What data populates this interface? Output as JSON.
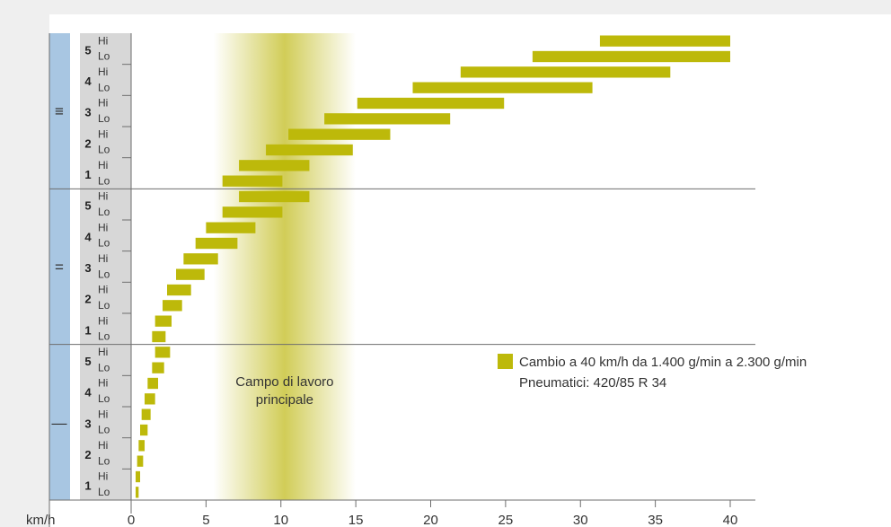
{
  "chart_data": {
    "type": "bar",
    "chart_subtype": "horizontal-range",
    "xlabel": "km/h",
    "xlim": [
      0,
      40
    ],
    "xticks": [
      0,
      5,
      10,
      15,
      20,
      25,
      30,
      35,
      40
    ],
    "colors": {
      "bar": "#bdb90a",
      "groupbar": "#a8c6e2",
      "label_column": "#d7d7d7",
      "background": "#efefef",
      "highlight": "#c9c43a",
      "axis": "#6e6e6e"
    },
    "highlight_band": {
      "label_line1": "Campo di lavoro",
      "label_line2": "principale",
      "range": [
        5.5,
        15
      ]
    },
    "legend": {
      "line1": "Cambio a 40 km/h da 1.400 g/min a 2.300 g/min",
      "line2": "Pneumatici: 420/85 R 34",
      "placement": "right"
    },
    "groups": [
      {
        "label": "≡",
        "gears": [
          {
            "gear": "5",
            "hi": [
              31.3,
              40.0
            ],
            "lo": [
              26.8,
              40.0
            ]
          },
          {
            "gear": "4",
            "hi": [
              22.0,
              36.0
            ],
            "lo": [
              18.8,
              30.8
            ]
          },
          {
            "gear": "3",
            "hi": [
              15.1,
              24.9
            ],
            "lo": [
              12.9,
              21.3
            ]
          },
          {
            "gear": "2",
            "hi": [
              10.5,
              17.3
            ],
            "lo": [
              9.0,
              14.8
            ]
          },
          {
            "gear": "1",
            "hi": [
              7.2,
              11.9
            ],
            "lo": [
              6.1,
              10.1
            ]
          }
        ]
      },
      {
        "label": "=",
        "gears": [
          {
            "gear": "5",
            "hi": [
              7.2,
              11.9
            ],
            "lo": [
              6.1,
              10.1
            ]
          },
          {
            "gear": "4",
            "hi": [
              5.0,
              8.3
            ],
            "lo": [
              4.3,
              7.1
            ]
          },
          {
            "gear": "3",
            "hi": [
              3.5,
              5.8
            ],
            "lo": [
              3.0,
              4.9
            ]
          },
          {
            "gear": "2",
            "hi": [
              2.4,
              4.0
            ],
            "lo": [
              2.1,
              3.4
            ]
          },
          {
            "gear": "1",
            "hi": [
              1.6,
              2.7
            ],
            "lo": [
              1.4,
              2.3
            ]
          }
        ]
      },
      {
        "label": "—",
        "gears": [
          {
            "gear": "5",
            "hi": [
              1.6,
              2.6
            ],
            "lo": [
              1.4,
              2.2
            ]
          },
          {
            "gear": "4",
            "hi": [
              1.1,
              1.8
            ],
            "lo": [
              0.9,
              1.6
            ]
          },
          {
            "gear": "3",
            "hi": [
              0.7,
              1.3
            ],
            "lo": [
              0.6,
              1.1
            ]
          },
          {
            "gear": "2",
            "hi": [
              0.5,
              0.9
            ],
            "lo": [
              0.4,
              0.8
            ]
          },
          {
            "gear": "1",
            "hi": [
              0.3,
              0.6
            ],
            "lo": [
              0.3,
              0.5
            ]
          }
        ]
      }
    ],
    "hi_label": "Hi",
    "lo_label": "Lo"
  }
}
